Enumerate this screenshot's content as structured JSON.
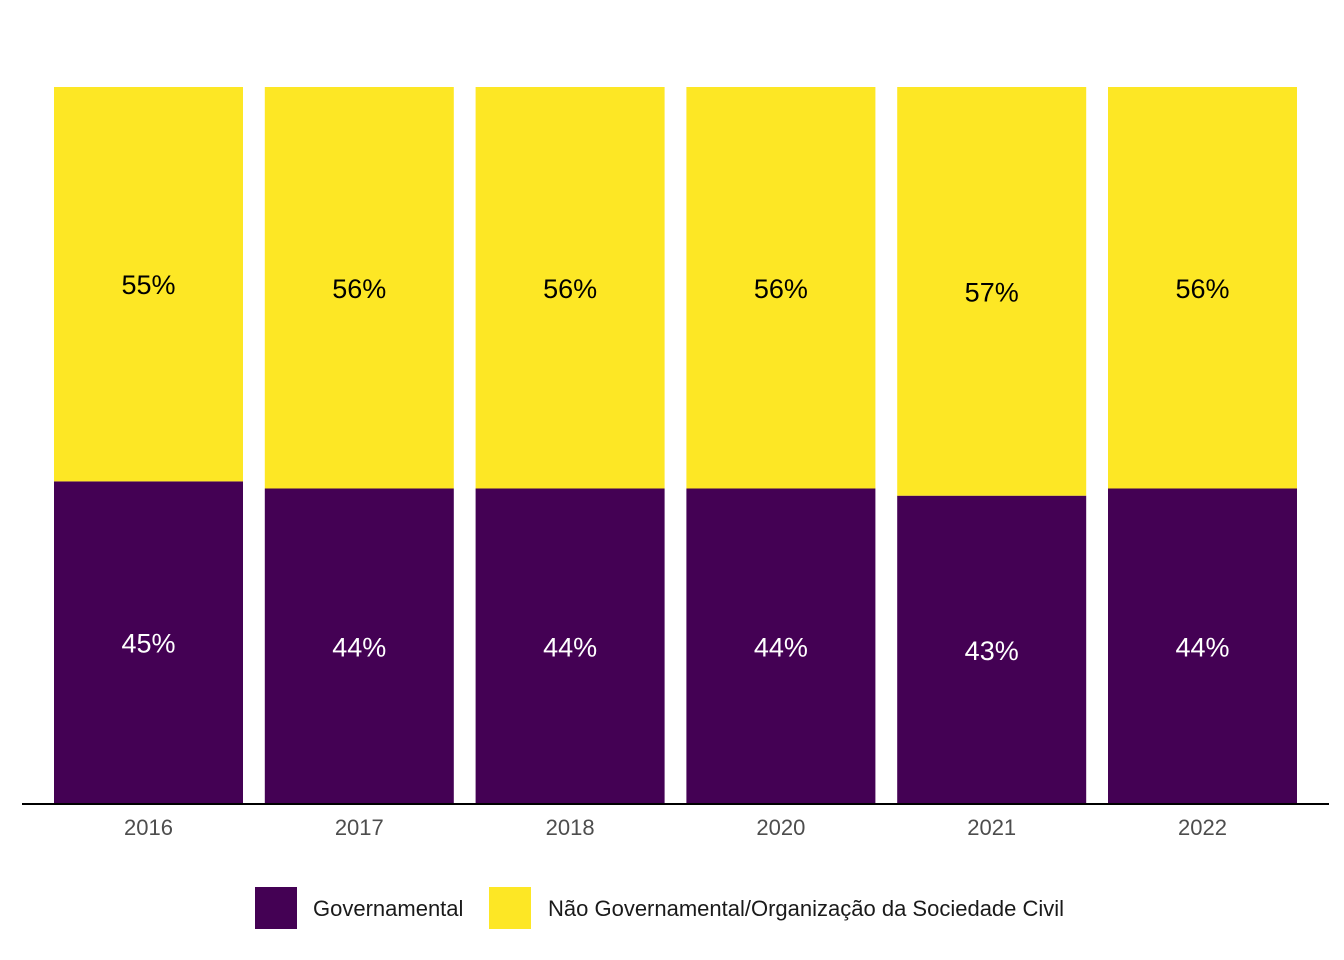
{
  "chart_data": {
    "type": "bar",
    "stacked": true,
    "normalized": true,
    "categories": [
      "2016",
      "2017",
      "2018",
      "2020",
      "2021",
      "2022"
    ],
    "series": [
      {
        "name": "Governamental",
        "color": "#440154",
        "label_color": "#ffffff",
        "values": [
          45,
          44,
          44,
          44,
          43,
          44
        ],
        "labels": [
          "45%",
          "44%",
          "44%",
          "44%",
          "43%",
          "44%"
        ]
      },
      {
        "name": "Não Governamental/Organização da Sociedade Civil",
        "color": "#fde725",
        "label_color": "#000000",
        "values": [
          55,
          56,
          56,
          56,
          57,
          56
        ],
        "labels": [
          "55%",
          "56%",
          "56%",
          "56%",
          "57%",
          "56%"
        ]
      }
    ],
    "ylim": [
      0,
      100
    ],
    "grid": false,
    "legend_position": "bottom"
  }
}
